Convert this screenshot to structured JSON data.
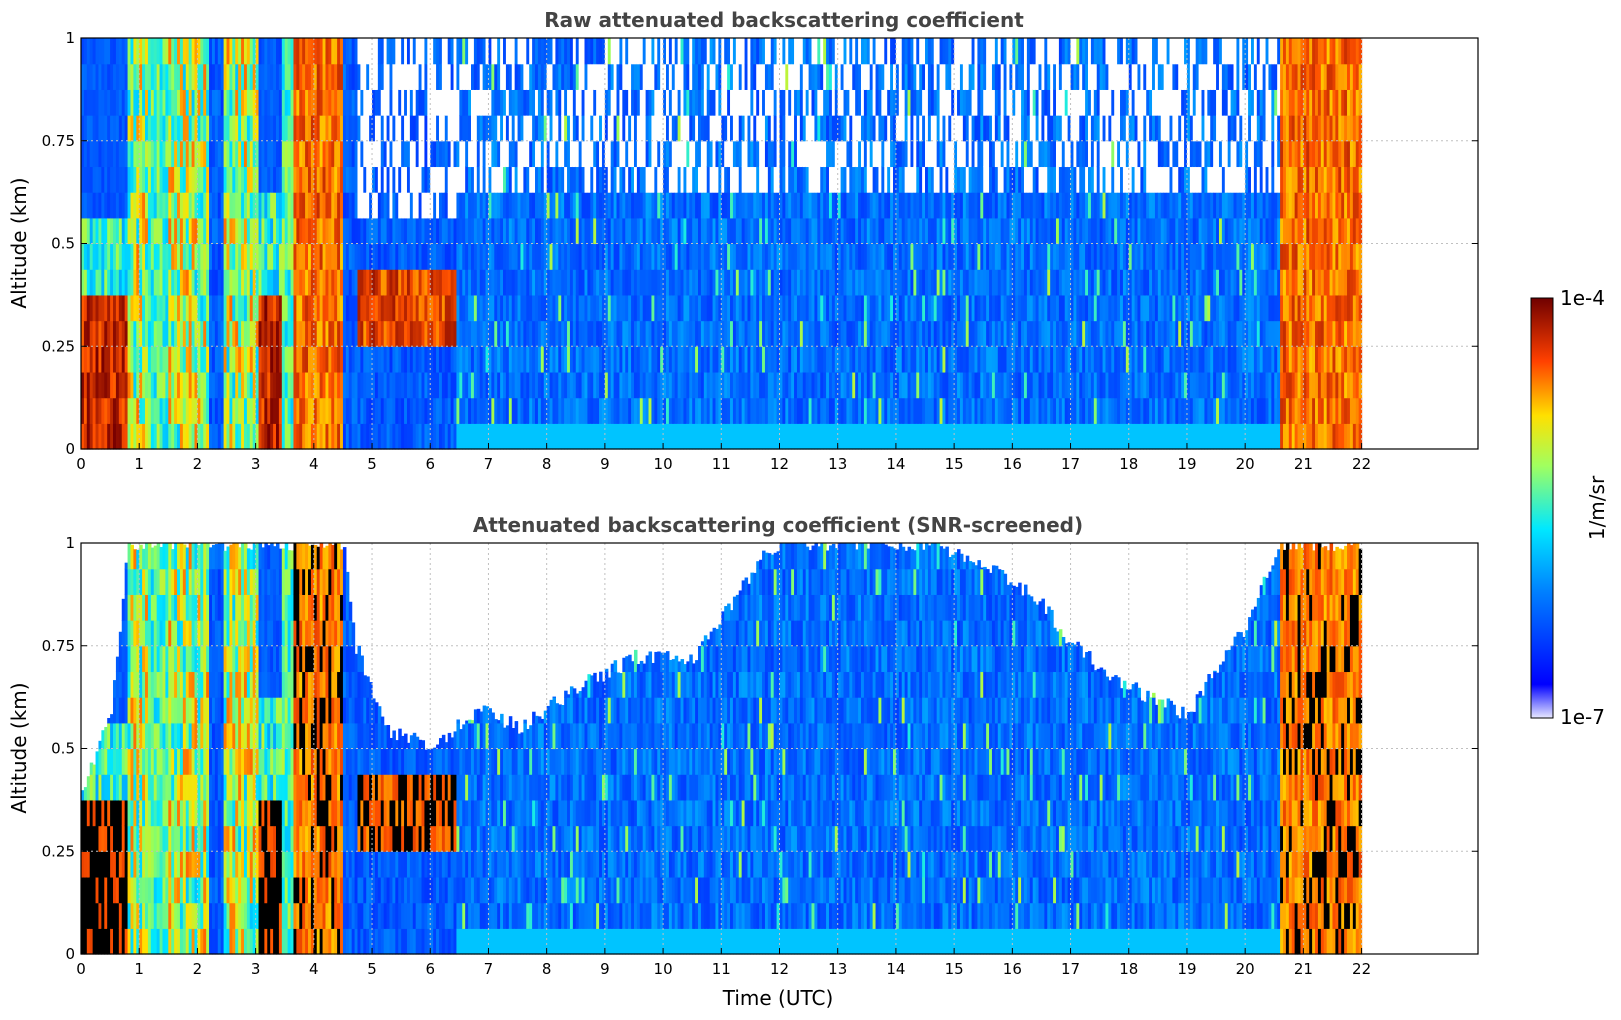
{
  "chart_data": [
    {
      "type": "heatmap",
      "title": "Raw attenuated backscattering coefficient",
      "xlabel": "",
      "ylabel": "Altitude (km)",
      "xlim": [
        0,
        24
      ],
      "ylim": [
        0,
        1
      ],
      "x_ticks": [
        "0",
        "1",
        "2",
        "3",
        "4",
        "5",
        "6",
        "7",
        "8",
        "9",
        "10",
        "11",
        "12",
        "13",
        "14",
        "15",
        "16",
        "17",
        "18",
        "19",
        "20",
        "21",
        "22"
      ],
      "y_ticks": [
        "0",
        "0.25",
        "0.5",
        "0.75",
        "1"
      ],
      "grid": true,
      "data_extent_x": [
        0,
        22
      ],
      "columns": [
        {
          "x": [
            0.0,
            0.8
          ],
          "kind": "aerosol",
          "top": 0.55
        },
        {
          "x": [
            0.8,
            1.15
          ],
          "kind": "cloud"
        },
        {
          "x": [
            1.15,
            1.5
          ],
          "kind": "band-cyan"
        },
        {
          "x": [
            1.5,
            2.2
          ],
          "kind": "cloud"
        },
        {
          "x": [
            2.2,
            2.4
          ],
          "kind": "blue"
        },
        {
          "x": [
            2.4,
            3.0
          ],
          "kind": "cloud"
        },
        {
          "x": [
            3.0,
            3.4
          ],
          "kind": "aerosol",
          "top": 0.6
        },
        {
          "x": [
            3.4,
            3.6
          ],
          "kind": "band-cyan"
        },
        {
          "x": [
            3.6,
            4.45
          ],
          "kind": "cloud-red"
        },
        {
          "x": [
            4.45,
            4.7
          ],
          "kind": "blue"
        },
        {
          "x": [
            4.7,
            6.4
          ],
          "kind": "plume",
          "top": 0.45
        },
        {
          "x": [
            6.4,
            20.6
          ],
          "kind": "boundary-layer",
          "top": 0.6
        },
        {
          "x": [
            20.6,
            21.9
          ],
          "kind": "cloud-red"
        }
      ]
    },
    {
      "type": "heatmap",
      "title": "Attenuated backscattering coefficient (SNR-screened)",
      "xlabel": "Time (UTC)",
      "ylabel": "Altitude (km)",
      "xlim": [
        0,
        24
      ],
      "ylim": [
        0,
        1
      ],
      "x_ticks": [
        "0",
        "1",
        "2",
        "3",
        "4",
        "5",
        "6",
        "7",
        "8",
        "9",
        "10",
        "11",
        "12",
        "13",
        "14",
        "15",
        "16",
        "17",
        "18",
        "19",
        "20",
        "21",
        "22"
      ],
      "y_ticks": [
        "0",
        "0.25",
        "0.5",
        "0.75",
        "1"
      ],
      "grid": true,
      "data_extent_x": [
        0,
        22
      ],
      "screened_top": [
        {
          "x": 0,
          "y": 0.4
        },
        {
          "x": 0.5,
          "y": 0.6
        },
        {
          "x": 0.8,
          "y": 1.0
        },
        {
          "x": 4.5,
          "y": 1.0
        },
        {
          "x": 4.7,
          "y": 0.75
        },
        {
          "x": 5.2,
          "y": 0.55
        },
        {
          "x": 6.0,
          "y": 0.5
        },
        {
          "x": 6.8,
          "y": 0.6
        },
        {
          "x": 7.5,
          "y": 0.55
        },
        {
          "x": 8.5,
          "y": 0.65
        },
        {
          "x": 9.5,
          "y": 0.72
        },
        {
          "x": 10.5,
          "y": 0.72
        },
        {
          "x": 11.0,
          "y": 0.82
        },
        {
          "x": 11.6,
          "y": 0.95
        },
        {
          "x": 12.0,
          "y": 1.0
        },
        {
          "x": 14.6,
          "y": 1.0
        },
        {
          "x": 15.5,
          "y": 0.95
        },
        {
          "x": 16.5,
          "y": 0.85
        },
        {
          "x": 17.0,
          "y": 0.75
        },
        {
          "x": 18.0,
          "y": 0.65
        },
        {
          "x": 19.0,
          "y": 0.58
        },
        {
          "x": 19.5,
          "y": 0.7
        },
        {
          "x": 20.0,
          "y": 0.8
        },
        {
          "x": 20.6,
          "y": 1.0
        }
      ]
    }
  ],
  "colorbar": {
    "max_label": "1e-4",
    "min_label": "1e-7",
    "unit_label": "1/m/sr",
    "colors": [
      "#ffffff",
      "#d8d8f8",
      "#9a9aff",
      "#0000ff",
      "#0040ff",
      "#0080ff",
      "#00c0ff",
      "#00ffd0",
      "#80ff60",
      "#ffff00",
      "#ffc000",
      "#ff6000",
      "#ff0000",
      "#a00000",
      "#700000"
    ]
  }
}
